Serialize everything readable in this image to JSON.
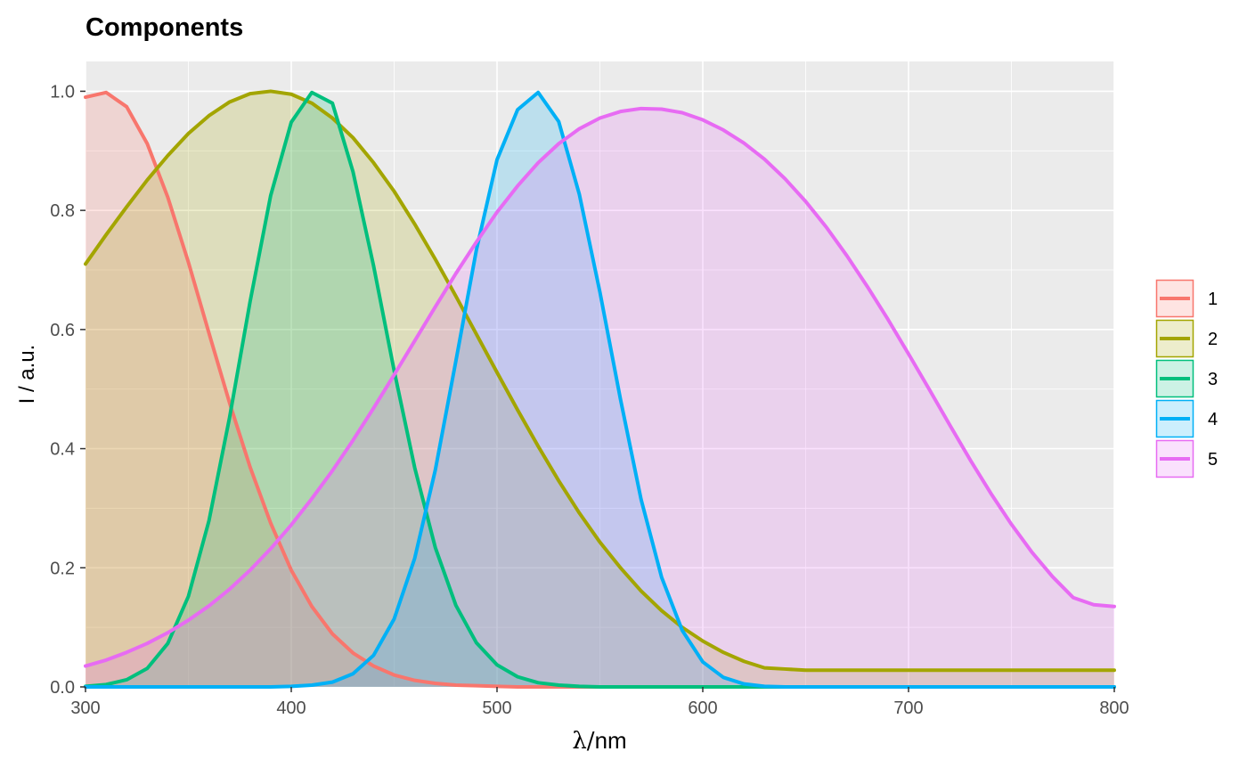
{
  "chart_data": {
    "type": "area",
    "title": "Components",
    "xlabel_symbol": "λ",
    "xlabel_unit": "nm",
    "ylabel": "I / a.u.",
    "xlim": [
      300,
      800
    ],
    "ylim": [
      0,
      1.05
    ],
    "x_ticks": [
      300,
      400,
      500,
      600,
      700,
      800
    ],
    "x_tick_labels": [
      "300",
      "400",
      "500",
      "600",
      "700",
      "800"
    ],
    "y_ticks": [
      0,
      0.2,
      0.4,
      0.6,
      0.8,
      1.0
    ],
    "y_tick_labels": [
      "0.0",
      "0.2",
      "0.4",
      "0.6",
      "0.8",
      "1.0"
    ],
    "grid": true,
    "legend_position": "right",
    "x": [
      300,
      310,
      320,
      330,
      340,
      350,
      360,
      370,
      380,
      390,
      400,
      410,
      420,
      430,
      440,
      450,
      460,
      470,
      480,
      490,
      500,
      510,
      520,
      530,
      540,
      550,
      560,
      570,
      580,
      590,
      600,
      610,
      620,
      630,
      640,
      650,
      660,
      670,
      680,
      690,
      700,
      710,
      720,
      730,
      740,
      750,
      760,
      770,
      780,
      790,
      800
    ],
    "series": [
      {
        "name": "1",
        "color": "#F8766D",
        "values": [
          0.99,
          0.998,
          0.974,
          0.912,
          0.822,
          0.713,
          0.594,
          0.477,
          0.369,
          0.275,
          0.196,
          0.135,
          0.089,
          0.057,
          0.035,
          0.02,
          0.011,
          0.006,
          0.003,
          0.002,
          0.001,
          0,
          0,
          0,
          0,
          0,
          0,
          0,
          0,
          0,
          0,
          0,
          0,
          0,
          0,
          0,
          0,
          0,
          0,
          0,
          0,
          0,
          0,
          0,
          0,
          0,
          0,
          0,
          0,
          0,
          0
        ]
      },
      {
        "name": "2",
        "color": "#A3A500",
        "values": [
          0.71,
          0.759,
          0.806,
          0.851,
          0.892,
          0.929,
          0.959,
          0.982,
          0.996,
          1.0,
          0.995,
          0.98,
          0.955,
          0.922,
          0.88,
          0.832,
          0.777,
          0.718,
          0.656,
          0.592,
          0.528,
          0.465,
          0.404,
          0.346,
          0.292,
          0.243,
          0.2,
          0.161,
          0.128,
          0.1,
          0.077,
          0.058,
          0.043,
          0.032,
          0.03,
          0.028,
          0.028,
          0.028,
          0.028,
          0.028,
          0.028,
          0.028,
          0.028,
          0.028,
          0.028,
          0.028,
          0.028,
          0.028,
          0.028,
          0.028,
          0.028
        ]
      },
      {
        "name": "3",
        "color": "#00BF7D",
        "values": [
          0.001,
          0.004,
          0.012,
          0.031,
          0.073,
          0.152,
          0.279,
          0.452,
          0.647,
          0.825,
          0.948,
          0.998,
          0.98,
          0.865,
          0.707,
          0.531,
          0.368,
          0.234,
          0.137,
          0.074,
          0.037,
          0.017,
          0.007,
          0.003,
          0.001,
          0,
          0,
          0,
          0,
          0,
          0,
          0,
          0,
          0,
          0,
          0,
          0,
          0,
          0,
          0,
          0,
          0,
          0,
          0,
          0,
          0,
          0,
          0,
          0,
          0,
          0
        ]
      },
      {
        "name": "4",
        "color": "#00B0F6",
        "values": [
          0,
          0,
          0,
          0,
          0,
          0,
          0,
          0,
          0,
          0,
          0.001,
          0.003,
          0.008,
          0.022,
          0.053,
          0.114,
          0.216,
          0.364,
          0.547,
          0.734,
          0.885,
          0.969,
          0.998,
          0.949,
          0.827,
          0.663,
          0.483,
          0.315,
          0.184,
          0.095,
          0.042,
          0.016,
          0.005,
          0.001,
          0,
          0,
          0,
          0,
          0,
          0,
          0,
          0,
          0,
          0,
          0,
          0,
          0,
          0,
          0,
          0,
          0
        ]
      },
      {
        "name": "5",
        "color": "#E76BF3",
        "values": [
          0.035,
          0.045,
          0.058,
          0.073,
          0.091,
          0.112,
          0.136,
          0.164,
          0.196,
          0.232,
          0.272,
          0.316,
          0.363,
          0.414,
          0.468,
          0.524,
          0.581,
          0.638,
          0.694,
          0.747,
          0.797,
          0.841,
          0.88,
          0.912,
          0.937,
          0.955,
          0.966,
          0.971,
          0.97,
          0.964,
          0.952,
          0.935,
          0.913,
          0.886,
          0.853,
          0.815,
          0.772,
          0.724,
          0.672,
          0.617,
          0.559,
          0.5,
          0.44,
          0.381,
          0.325,
          0.273,
          0.226,
          0.185,
          0.15,
          0.138,
          0.135
        ]
      }
    ]
  }
}
